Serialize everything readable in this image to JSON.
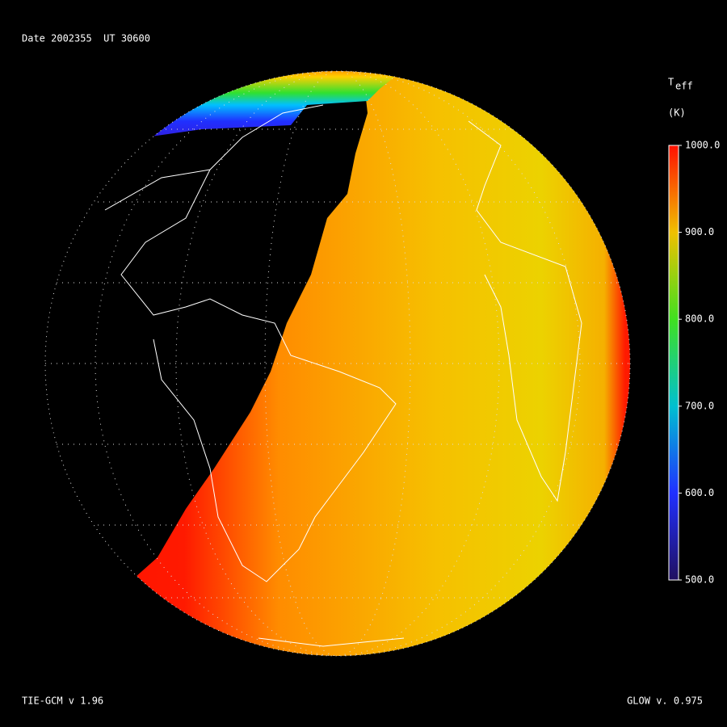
{
  "header": {
    "text": "Date 2002355  UT 30600"
  },
  "colorbar": {
    "title": "T",
    "title_sub": "eff",
    "unit": "(K)",
    "range": [
      500,
      1000
    ],
    "ticks": [
      {
        "value": 1000,
        "label": "1000.0"
      },
      {
        "value": 900,
        "label": "900.0"
      },
      {
        "value": 800,
        "label": "800.0"
      },
      {
        "value": 700,
        "label": "700.0"
      },
      {
        "value": 600,
        "label": "600.0"
      },
      {
        "value": 500,
        "label": "500.0"
      }
    ]
  },
  "footer": {
    "left": "TIE-GCM v 1.96",
    "right": "GLOW v. 0.975"
  }
}
